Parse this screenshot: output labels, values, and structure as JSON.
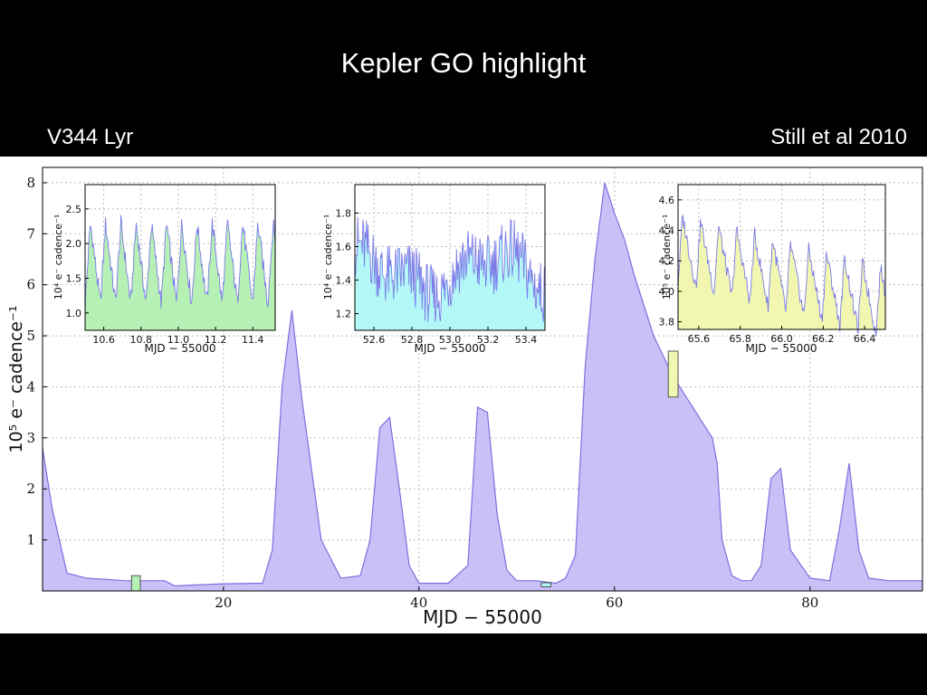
{
  "slide": {
    "title": "Kepler GO highlight",
    "subtitle_left": "V344 Lyr",
    "subtitle_right": "Still et al 2010"
  },
  "colors": {
    "main_fill": "#c9c0f7",
    "main_line": "#7f6fe0",
    "inset1_fill": "#b6f0b4",
    "inset2_fill": "#b3f7f7",
    "inset3_fill": "#f1f7b0",
    "inset_line": "#7a7ae8"
  },
  "chart_data": [
    {
      "type": "area",
      "xlabel": "MJD − 55000",
      "ylabel": "10⁵ e⁻ cadence⁻¹",
      "xlim": [
        1.5,
        91.5
      ],
      "ylim": [
        0,
        8.3
      ],
      "xticks": [
        "20",
        "40",
        "60",
        "80"
      ],
      "yticks": [
        "1",
        "2",
        "3",
        "4",
        "5",
        "6",
        "7",
        "8"
      ],
      "grid": true,
      "x": [
        1.5,
        2.5,
        4,
        6,
        10,
        14,
        15,
        20,
        24,
        25,
        26,
        27,
        28,
        30,
        32,
        34,
        35,
        36,
        37,
        38,
        39,
        40,
        43,
        45,
        46,
        47,
        48,
        49,
        50,
        52,
        54,
        55,
        56,
        57,
        58,
        59,
        60,
        61,
        62,
        63,
        64,
        65,
        66,
        67,
        68,
        69,
        70,
        70.5,
        71,
        72,
        73,
        74,
        75,
        76,
        77,
        78,
        80,
        82,
        83,
        84,
        85,
        86,
        88,
        90,
        91.5
      ],
      "y": [
        2.8,
        1.6,
        0.35,
        0.25,
        0.2,
        0.2,
        0.1,
        0.14,
        0.15,
        0.8,
        4.0,
        5.5,
        3.8,
        1.0,
        0.25,
        0.3,
        1.0,
        3.2,
        3.4,
        2.0,
        0.5,
        0.15,
        0.15,
        0.5,
        3.6,
        3.5,
        1.5,
        0.4,
        0.2,
        0.2,
        0.15,
        0.25,
        0.7,
        4.4,
        6.5,
        8.0,
        7.4,
        6.9,
        6.2,
        5.6,
        5.0,
        4.6,
        4.2,
        3.9,
        3.6,
        3.3,
        3.0,
        2.5,
        1.0,
        0.3,
        0.2,
        0.2,
        0.5,
        2.2,
        2.4,
        0.8,
        0.25,
        0.2,
        1.2,
        2.5,
        0.8,
        0.25,
        0.2,
        0.2,
        0.2
      ],
      "highlight_boxes": [
        {
          "x": [
            10.6,
            11.5
          ],
          "y": [
            0.0,
            0.3
          ],
          "color": "#b6f0b4"
        },
        {
          "x": [
            52.5,
            53.5
          ],
          "y": [
            0.08,
            0.16
          ],
          "color": "#b3f7f7"
        },
        {
          "x": [
            65.5,
            66.5
          ],
          "y": [
            3.8,
            4.7
          ],
          "color": "#f1f7b0"
        }
      ]
    },
    {
      "type": "area",
      "xlabel": "MJD − 55000",
      "ylabel": "10⁴ e⁻ cadence⁻¹",
      "xlim": [
        10.5,
        11.52
      ],
      "ylim": [
        0.75,
        2.85
      ],
      "xticks": [
        "10.6",
        "10.8",
        "11.0",
        "11.2",
        "11.4"
      ],
      "yticks": [
        "1.0",
        "1.5",
        "2.0",
        "2.5"
      ],
      "period": 0.0817,
      "range": [
        0.9,
        2.45
      ]
    },
    {
      "type": "area",
      "xlabel": "MJD − 55000",
      "ylabel": "10⁴ e⁻ cadence⁻¹",
      "xlim": [
        52.5,
        53.5
      ],
      "ylim": [
        1.1,
        1.97
      ],
      "xticks": [
        "52.6",
        "52.8",
        "53.0",
        "53.2",
        "53.4"
      ],
      "yticks": [
        "1.2",
        "1.4",
        "1.6",
        "1.8"
      ],
      "range": [
        1.2,
        1.85
      ]
    },
    {
      "type": "area",
      "xlabel": "MJD − 55000",
      "ylabel": "10⁵ e⁻ cadence⁻¹",
      "xlim": [
        65.5,
        66.5
      ],
      "ylim": [
        3.75,
        4.7
      ],
      "xticks": [
        "65.6",
        "65.8",
        "66.0",
        "66.2",
        "66.4"
      ],
      "yticks": [
        "3.8",
        "4.0",
        "4.2",
        "4.4",
        "4.6"
      ],
      "period": 0.0868,
      "range": [
        3.85,
        4.6
      ]
    }
  ]
}
